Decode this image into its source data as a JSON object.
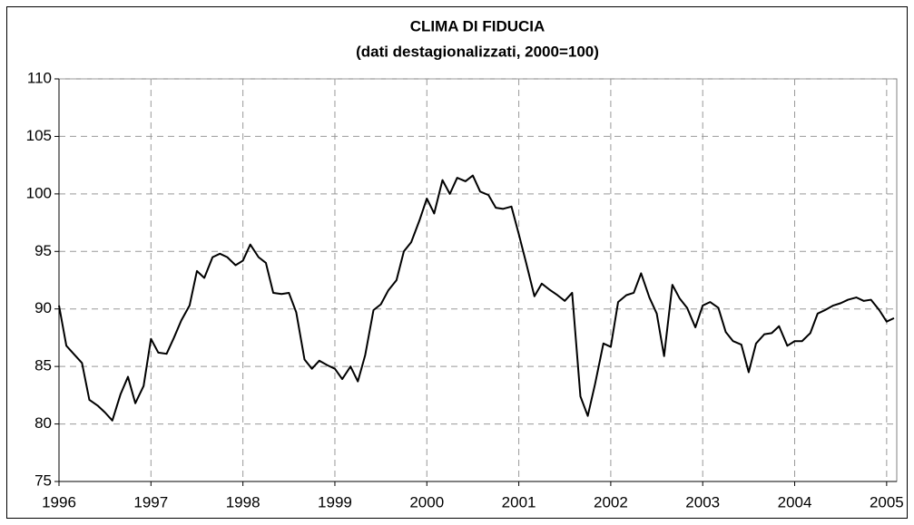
{
  "chart_data": {
    "type": "line",
    "title": "CLIMA DI FIDUCIA",
    "subtitle": "(dati destagionalizzati, 2000=100)",
    "x": [
      1996,
      1996.08,
      1996.17,
      1996.25,
      1996.33,
      1996.42,
      1996.5,
      1996.58,
      1996.67,
      1996.75,
      1996.83,
      1996.92,
      1997,
      1997.08,
      1997.17,
      1997.25,
      1997.33,
      1997.42,
      1997.5,
      1997.58,
      1997.67,
      1997.75,
      1997.83,
      1997.92,
      1998,
      1998.08,
      1998.17,
      1998.25,
      1998.33,
      1998.42,
      1998.5,
      1998.58,
      1998.67,
      1998.75,
      1998.83,
      1998.92,
      1999,
      1999.08,
      1999.17,
      1999.25,
      1999.33,
      1999.42,
      1999.5,
      1999.58,
      1999.67,
      1999.75,
      1999.83,
      1999.92,
      2000,
      2000.08,
      2000.17,
      2000.25,
      2000.33,
      2000.42,
      2000.5,
      2000.58,
      2000.67,
      2000.75,
      2000.83,
      2000.92,
      2001,
      2001.08,
      2001.17,
      2001.25,
      2001.33,
      2001.42,
      2001.5,
      2001.58,
      2001.67,
      2001.75,
      2001.83,
      2001.92,
      2002,
      2002.08,
      2002.17,
      2002.25,
      2002.33,
      2002.42,
      2002.5,
      2002.58,
      2002.67,
      2002.75,
      2002.83,
      2002.92,
      2003,
      2003.08,
      2003.17,
      2003.25,
      2003.33,
      2003.42,
      2003.5,
      2003.58,
      2003.67,
      2003.75,
      2003.83,
      2003.92,
      2004,
      2004.08,
      2004.17,
      2004.25,
      2004.33,
      2004.42,
      2004.5,
      2004.58,
      2004.67,
      2004.75,
      2004.83,
      2004.92,
      2005,
      2005.08
    ],
    "series": [
      {
        "color": "#000000",
        "values": [
          90.3,
          86.8,
          86.0,
          85.3,
          82.1,
          81.6,
          81.0,
          80.3,
          82.6,
          84.1,
          81.8,
          83.3,
          87.4,
          86.2,
          86.1,
          87.5,
          89.0,
          90.3,
          93.3,
          92.7,
          94.5,
          94.8,
          94.5,
          93.8,
          94.2,
          95.6,
          94.5,
          94.0,
          91.4,
          91.3,
          91.4,
          89.7,
          85.6,
          84.8,
          85.5,
          85.1,
          84.8,
          83.9,
          85.0,
          83.7,
          86.0,
          89.9,
          90.4,
          91.6,
          92.5,
          95.0,
          95.8,
          97.7,
          99.6,
          98.3,
          101.2,
          100.0,
          101.4,
          101.1,
          101.6,
          100.2,
          99.9,
          98.8,
          98.7,
          98.9,
          96.5,
          94.0,
          91.1,
          92.2,
          91.7,
          91.2,
          90.7,
          91.4,
          82.4,
          80.7,
          83.5,
          87.0,
          86.7,
          90.6,
          91.2,
          91.4,
          93.1,
          91.0,
          89.6,
          85.9,
          92.1,
          90.9,
          90.1,
          88.4,
          90.3,
          90.6,
          90.1,
          88.0,
          87.2,
          86.9,
          84.5,
          87.0,
          87.8,
          87.9,
          88.5,
          86.8,
          87.2,
          87.2,
          87.9,
          89.6,
          89.9,
          90.3,
          90.5,
          90.8,
          91.0,
          90.7,
          90.8,
          89.9,
          88.9,
          89.2
        ]
      }
    ],
    "xlim": [
      1996,
      2005.11
    ],
    "xticks": [
      1996,
      1997,
      1998,
      1999,
      2000,
      2001,
      2002,
      2003,
      2004,
      2005
    ],
    "ylim": [
      75,
      110
    ],
    "yticks": [
      75,
      80,
      85,
      90,
      95,
      100,
      105,
      110
    ],
    "grid": true
  }
}
